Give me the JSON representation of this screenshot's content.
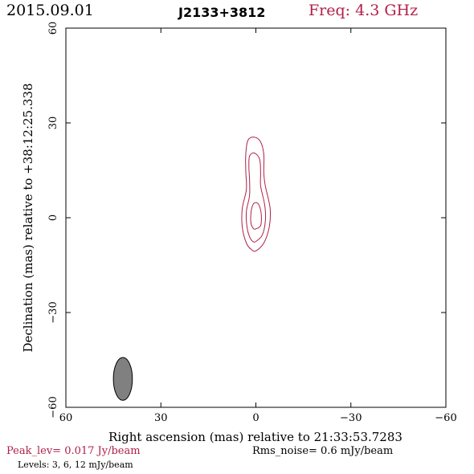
{
  "header": {
    "date": "2015.09.01",
    "source": "J2133+3812",
    "frequency": "Freq: 4.3 GHz"
  },
  "footer": {
    "peak": "Peak_lev=  0.017 Jy/beam",
    "rms": "Rms_noise=  0.6 mJy/beam",
    "levels": "Levels:   3,   6,   12 mJy/beam"
  },
  "colors": {
    "contour": "#b0204a",
    "beam_fill": "#808080",
    "axis": "#000000"
  },
  "chart_data": {
    "type": "contour",
    "xlabel": "Right ascension (mas) relative to 21:33:53.7283",
    "ylabel": "Declination (mas) relative to +38:12:25.338",
    "xlim": [
      60,
      -60
    ],
    "ylim": [
      -60,
      60
    ],
    "xticks": [
      60,
      30,
      0,
      -30,
      -60
    ],
    "yticks": [
      60,
      30,
      0,
      -30,
      -60
    ],
    "xtick_labels": [
      "60",
      "30",
      "0",
      "−30",
      "−60"
    ],
    "ytick_labels": [
      "60",
      "30",
      "0",
      "−30",
      "−60"
    ],
    "levels_mJy": [
      3,
      6,
      12
    ],
    "contours": [
      {
        "level": 3,
        "points": [
          [
            0,
            -10.5
          ],
          [
            -2.5,
            -8
          ],
          [
            -4.2,
            -3
          ],
          [
            -4.5,
            3
          ],
          [
            -3,
            10
          ],
          [
            -2.5,
            14
          ],
          [
            -2.5,
            20
          ],
          [
            -1.5,
            24
          ],
          [
            0.5,
            25.5
          ],
          [
            2.5,
            24.5
          ],
          [
            3.2,
            20
          ],
          [
            3.2,
            15
          ],
          [
            3,
            9
          ],
          [
            4.3,
            3
          ],
          [
            4.3,
            -3
          ],
          [
            3,
            -8
          ],
          [
            1.5,
            -10
          ]
        ]
      },
      {
        "level": 6,
        "points": [
          [
            0,
            -7.5
          ],
          [
            -2,
            -5.5
          ],
          [
            -3,
            -1
          ],
          [
            -2.8,
            4
          ],
          [
            -1.5,
            10
          ],
          [
            -1.5,
            14
          ],
          [
            -1.2,
            18.5
          ],
          [
            0.5,
            20.5
          ],
          [
            2,
            19.5
          ],
          [
            2.2,
            16
          ],
          [
            2,
            12
          ],
          [
            2,
            7
          ],
          [
            3,
            2
          ],
          [
            2.8,
            -3
          ],
          [
            2,
            -6
          ],
          [
            1,
            -7.5
          ]
        ]
      },
      {
        "level": 12,
        "points": [
          [
            0,
            -3.5
          ],
          [
            -1.5,
            -2.5
          ],
          [
            -1.7,
            1
          ],
          [
            -1,
            4
          ],
          [
            0,
            4.8
          ],
          [
            1,
            4
          ],
          [
            1.6,
            1
          ],
          [
            1.5,
            -2
          ],
          [
            0.7,
            -3.5
          ]
        ]
      }
    ],
    "beam": {
      "center": [
        42,
        -51
      ],
      "width_mas": 6,
      "height_mas": 13.5,
      "pa_deg": 0
    }
  }
}
